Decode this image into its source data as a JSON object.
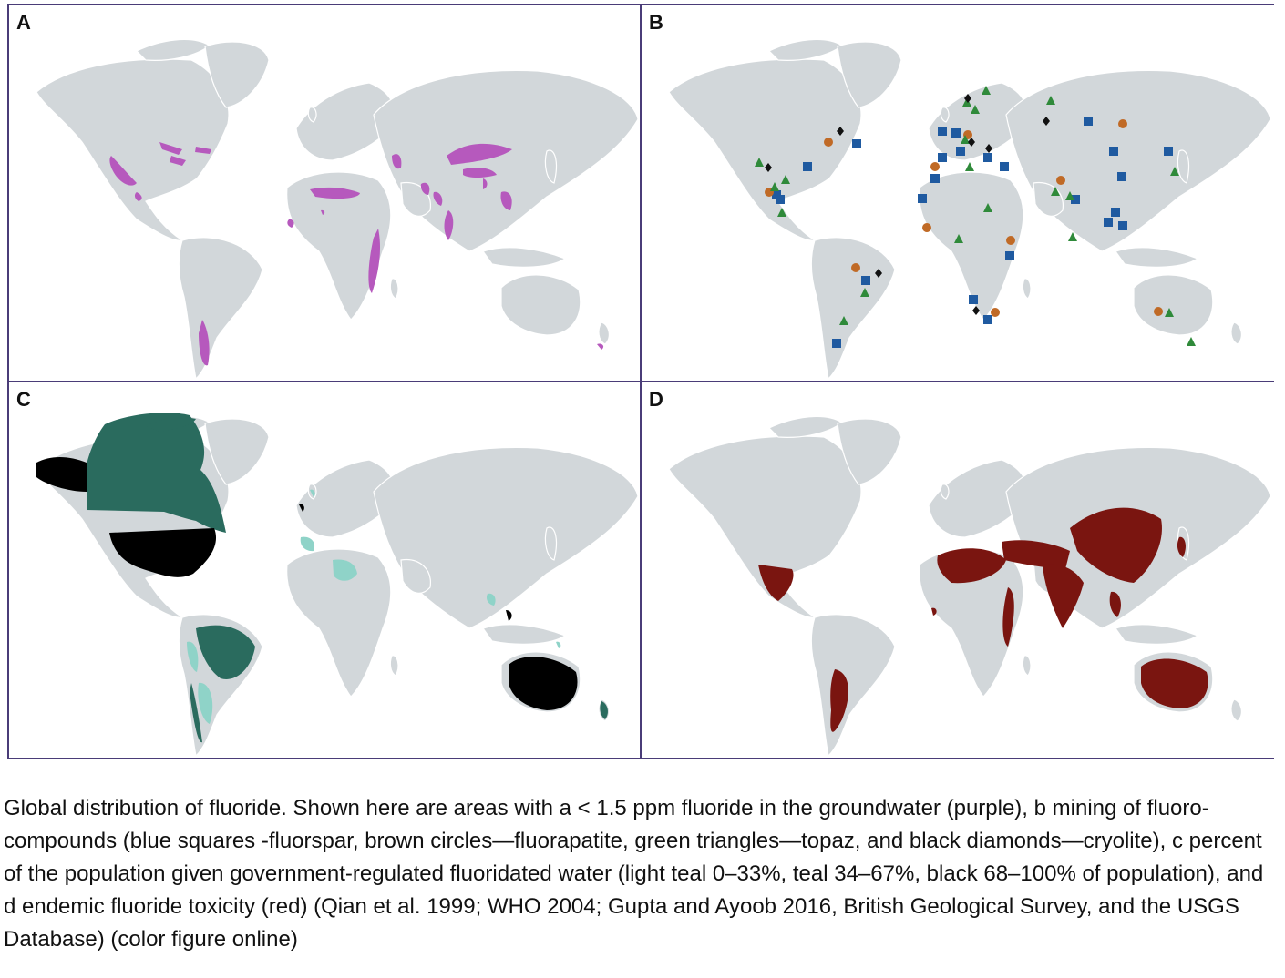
{
  "panels": [
    {
      "label": "A",
      "topic": "groundwater"
    },
    {
      "label": "B",
      "topic": "mining"
    },
    {
      "label": "C",
      "topic": "fluoridation"
    },
    {
      "label": "D",
      "topic": "toxicity"
    }
  ],
  "colors": {
    "land": "#d2d7da",
    "purple": "#b659bd",
    "fluorspar": "#1f5aa0",
    "fluorapatite": "#c06a26",
    "topaz": "#2f8a3a",
    "cryolite": "#111111",
    "light_teal": "#8fd3c8",
    "teal": "#2a6b5e",
    "black": "#000000",
    "red": "#7a1510",
    "frame": "#4a3c78"
  },
  "caption": "Global distribution of fluoride. Shown here are areas with a < 1.5 ppm fluoride in the groundwater (purple), b mining of fluoro-compounds (blue squares -fluorspar, brown circles—fluorapatite, green triangles—topaz, and black diamonds—cryolite), c percent of the population given government-regulated fluoridated water (light teal 0–33%, teal 34–67%, black 68–100% of population), and d endemic fluoride toxicity (red) (Qian et al. 1999; WHO 2004; Gupta and Ayoob 2016, British Geological Survey, and the USGS Database) (color figure online)"
}
